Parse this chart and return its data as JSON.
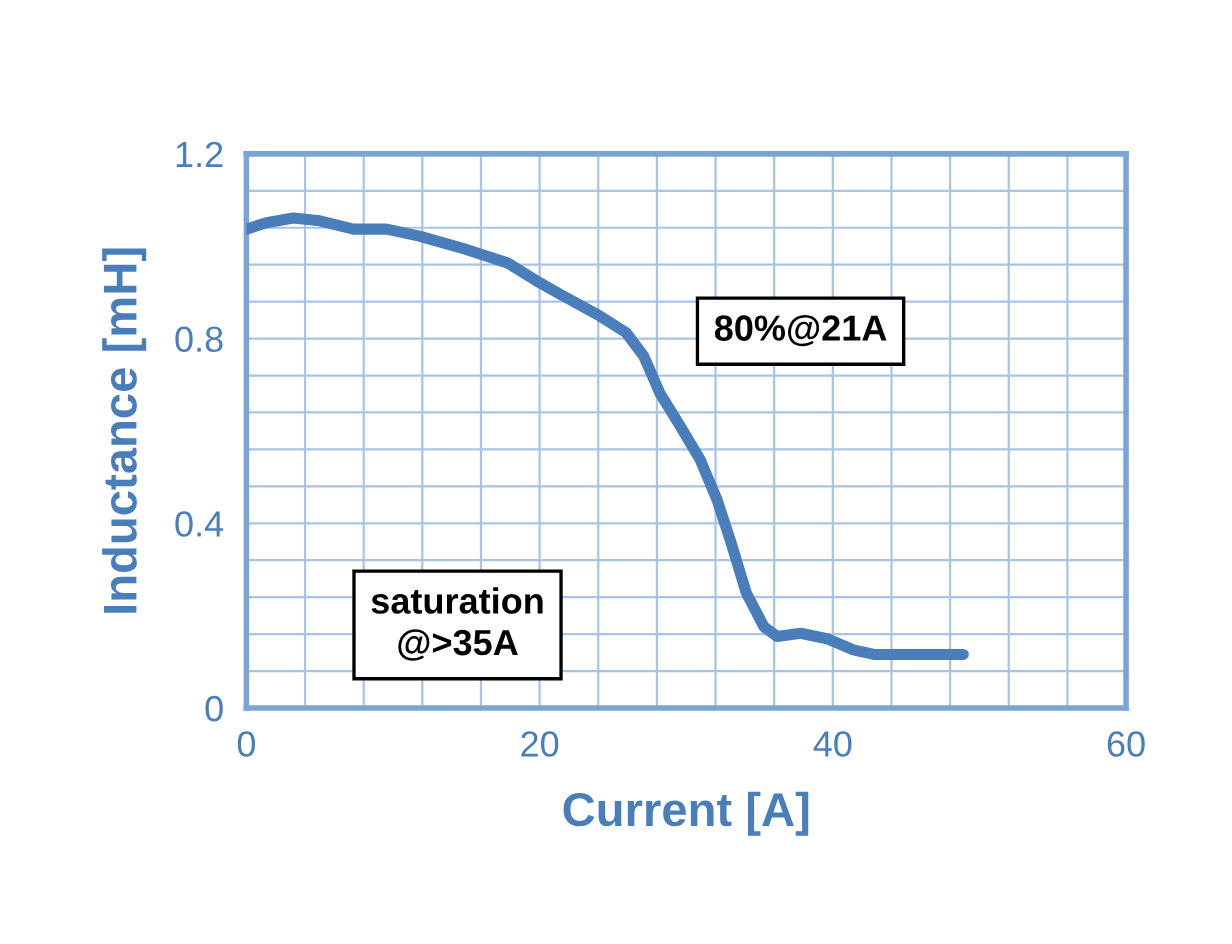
{
  "chart_data": {
    "type": "line",
    "xlabel": "Current [A]",
    "ylabel": "Inductance [mH]",
    "annotations": [
      "80%@21A",
      "saturation\n@>35A"
    ],
    "x": [
      0,
      1.37,
      3.19,
      5.0,
      7.3,
      9.56,
      11.8,
      15.0,
      17.8,
      20.0,
      21.4,
      24.1,
      25.9,
      27.1,
      28.2,
      29.6,
      30.95,
      32.1,
      33.0,
      34.1,
      35.3,
      36.2,
      37.8,
      39.6,
      41.4,
      42.8,
      45.1,
      48.9
    ],
    "series": [
      {
        "color": "#4a7ebb",
        "values": [
          1.037,
          1.051,
          1.061,
          1.055,
          1.037,
          1.037,
          1.022,
          0.993,
          0.964,
          0.921,
          0.896,
          0.849,
          0.813,
          0.762,
          0.682,
          0.61,
          0.538,
          0.451,
          0.364,
          0.249,
          0.176,
          0.155,
          0.162,
          0.15,
          0.126,
          0.116,
          0.116,
          0.116
        ]
      }
    ],
    "xlim": [
      0,
      60
    ],
    "ylim": [
      0,
      1.2
    ],
    "xticks": [
      0,
      {
        "value": 4,
        "label": null
      },
      {
        "value": 8,
        "label": null
      },
      {
        "value": 12,
        "label": null
      },
      {
        "value": 16,
        "label": null
      },
      20,
      {
        "value": 24,
        "label": null
      },
      {
        "value": 28,
        "label": null
      },
      {
        "value": 32,
        "label": null
      },
      {
        "value": 36,
        "label": null
      },
      40,
      {
        "value": 44,
        "label": null
      },
      {
        "value": 48,
        "label": null
      },
      {
        "value": 52,
        "label": null
      },
      {
        "value": 56,
        "label": null
      },
      60
    ],
    "yticks": [
      0,
      {
        "value": 0.08,
        "label": null
      },
      {
        "value": 0.16,
        "label": null
      },
      {
        "value": 0.24,
        "label": null
      },
      {
        "value": 0.32,
        "label": null
      },
      0.4,
      {
        "value": 0.48,
        "label": null
      },
      {
        "value": 0.56,
        "label": null
      },
      {
        "value": 0.64,
        "label": null
      },
      {
        "value": 0.72,
        "label": null
      },
      0.8,
      {
        "value": 0.88,
        "label": null
      },
      {
        "value": 0.96,
        "label": null
      },
      {
        "value": 1.04,
        "label": null
      },
      {
        "value": 1.12,
        "label": null
      },
      1.2
    ],
    "grid": true,
    "legend": false,
    "marker": "none",
    "line_style": "solid"
  }
}
